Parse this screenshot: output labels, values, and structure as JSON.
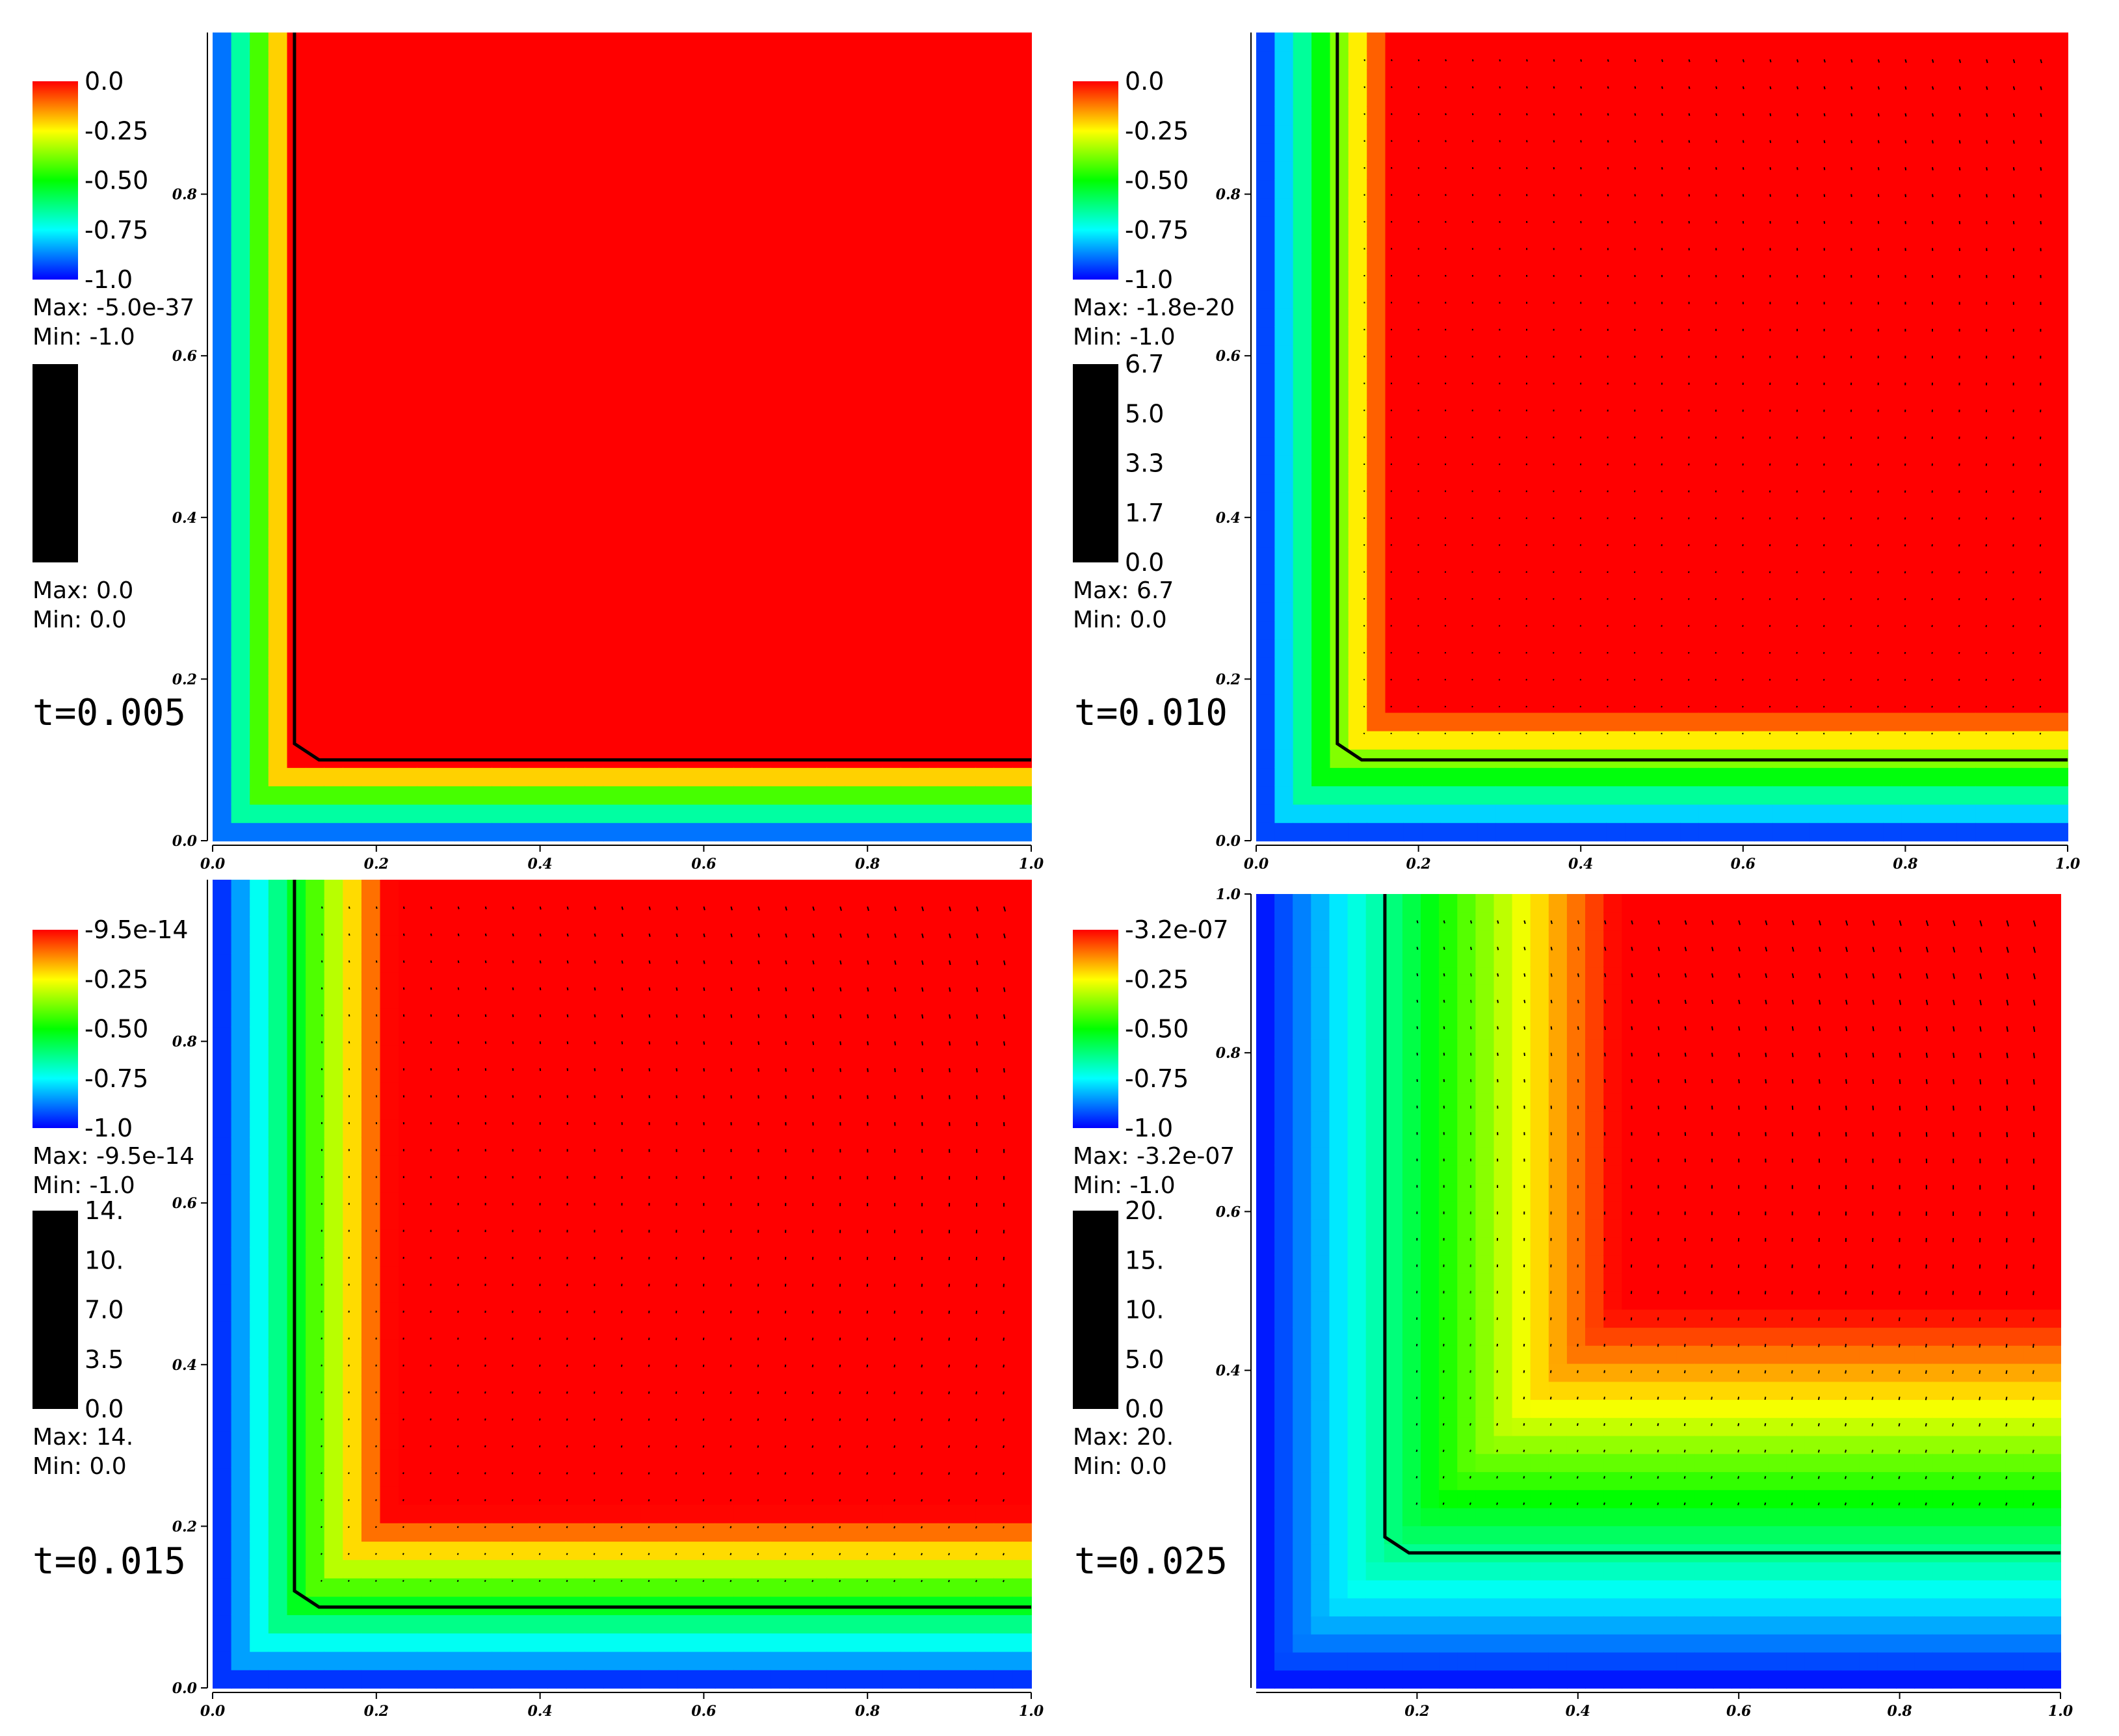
{
  "chart_data": [
    {
      "type": "heatmap",
      "time_label": "t=0.005",
      "x_ticks": [
        "0.0",
        "0.2",
        "0.4",
        "0.6",
        "0.8",
        "1.0"
      ],
      "y_ticks": [
        "0.0",
        "0.2",
        "0.4",
        "0.6",
        "0.8"
      ],
      "xlim": [
        0,
        1
      ],
      "ylim": [
        0,
        1
      ],
      "scalar_legend": {
        "ticks": [
          "0.0",
          "-0.25",
          "-0.50",
          "-0.75",
          "-1.0"
        ],
        "max_label": "Max: -5.0e-37",
        "min_label": "Min: -1.0"
      },
      "vector_legend": {
        "ticks": [],
        "max_label": "Max: 0.0",
        "min_label": "Min: 0.0"
      },
      "contour_corner": [
        0.1,
        0.1
      ],
      "front_progress": 0.0,
      "arrows": false
    },
    {
      "type": "heatmap",
      "time_label": "t=0.010",
      "x_ticks": [
        "0.0",
        "0.2",
        "0.4",
        "0.6",
        "0.8",
        "1.0"
      ],
      "y_ticks": [
        "0.0",
        "0.2",
        "0.4",
        "0.6",
        "0.8"
      ],
      "xlim": [
        0,
        1
      ],
      "ylim": [
        0,
        1
      ],
      "scalar_legend": {
        "ticks": [
          "0.0",
          "-0.25",
          "-0.50",
          "-0.75",
          "-1.0"
        ],
        "max_label": "Max: -1.8e-20",
        "min_label": "Min: -1.0"
      },
      "vector_legend": {
        "ticks": [
          "6.7",
          "5.0",
          "3.3",
          "1.7",
          "0.0"
        ],
        "max_label": "Max: 6.7",
        "min_label": "Min: 0.0"
      },
      "contour_corner": [
        0.1,
        0.1
      ],
      "front_progress": 0.35,
      "arrows": true
    },
    {
      "type": "heatmap",
      "time_label": "t=0.015",
      "x_ticks": [
        "0.0",
        "0.2",
        "0.4",
        "0.6",
        "0.8",
        "1.0"
      ],
      "y_ticks": [
        "0.0",
        "0.2",
        "0.4",
        "0.6",
        "0.8"
      ],
      "xlim": [
        0,
        1
      ],
      "ylim": [
        0,
        1
      ],
      "scalar_legend": {
        "ticks": [
          "-9.5e-14",
          "-0.25",
          "-0.50",
          "-0.75",
          "-1.0"
        ],
        "max_label": "Max: -9.5e-14",
        "min_label": "Min: -1.0"
      },
      "vector_legend": {
        "ticks": [
          "14.",
          "10.",
          "7.0",
          "3.5",
          "0.0"
        ],
        "max_label": "Max: 14.",
        "min_label": "Min: 0.0"
      },
      "contour_corner": [
        0.1,
        0.1
      ],
      "front_progress": 0.65,
      "arrows": true
    },
    {
      "type": "heatmap",
      "time_label": "t=0.025",
      "x_ticks": [
        "0.2",
        "0.4",
        "0.6",
        "0.8",
        "1.0"
      ],
      "y_ticks": [
        "0.4",
        "0.6",
        "0.8",
        "1.0"
      ],
      "xlim": [
        0,
        1
      ],
      "ylim": [
        0,
        1
      ],
      "scalar_legend": {
        "ticks": [
          "-3.2e-07",
          "-0.25",
          "-0.50",
          "-0.75",
          "-1.0"
        ],
        "max_label": "Max: -3.2e-07",
        "min_label": "Min: -1.0"
      },
      "vector_legend": {
        "ticks": [
          "20.",
          "15.",
          "10.",
          "5.0",
          "0.0"
        ],
        "max_label": "Max: 20.",
        "min_label": "Min: 0.0"
      },
      "contour_corner": [
        0.16,
        0.17
      ],
      "front_progress": 1.0,
      "arrows": true
    }
  ],
  "colors": {
    "colormap": [
      "#0000ff",
      "#00ffff",
      "#00ff00",
      "#ffff00",
      "#ff0000"
    ],
    "contour": "#000000",
    "arrow": "#000000",
    "vector_legend": "#000000"
  }
}
